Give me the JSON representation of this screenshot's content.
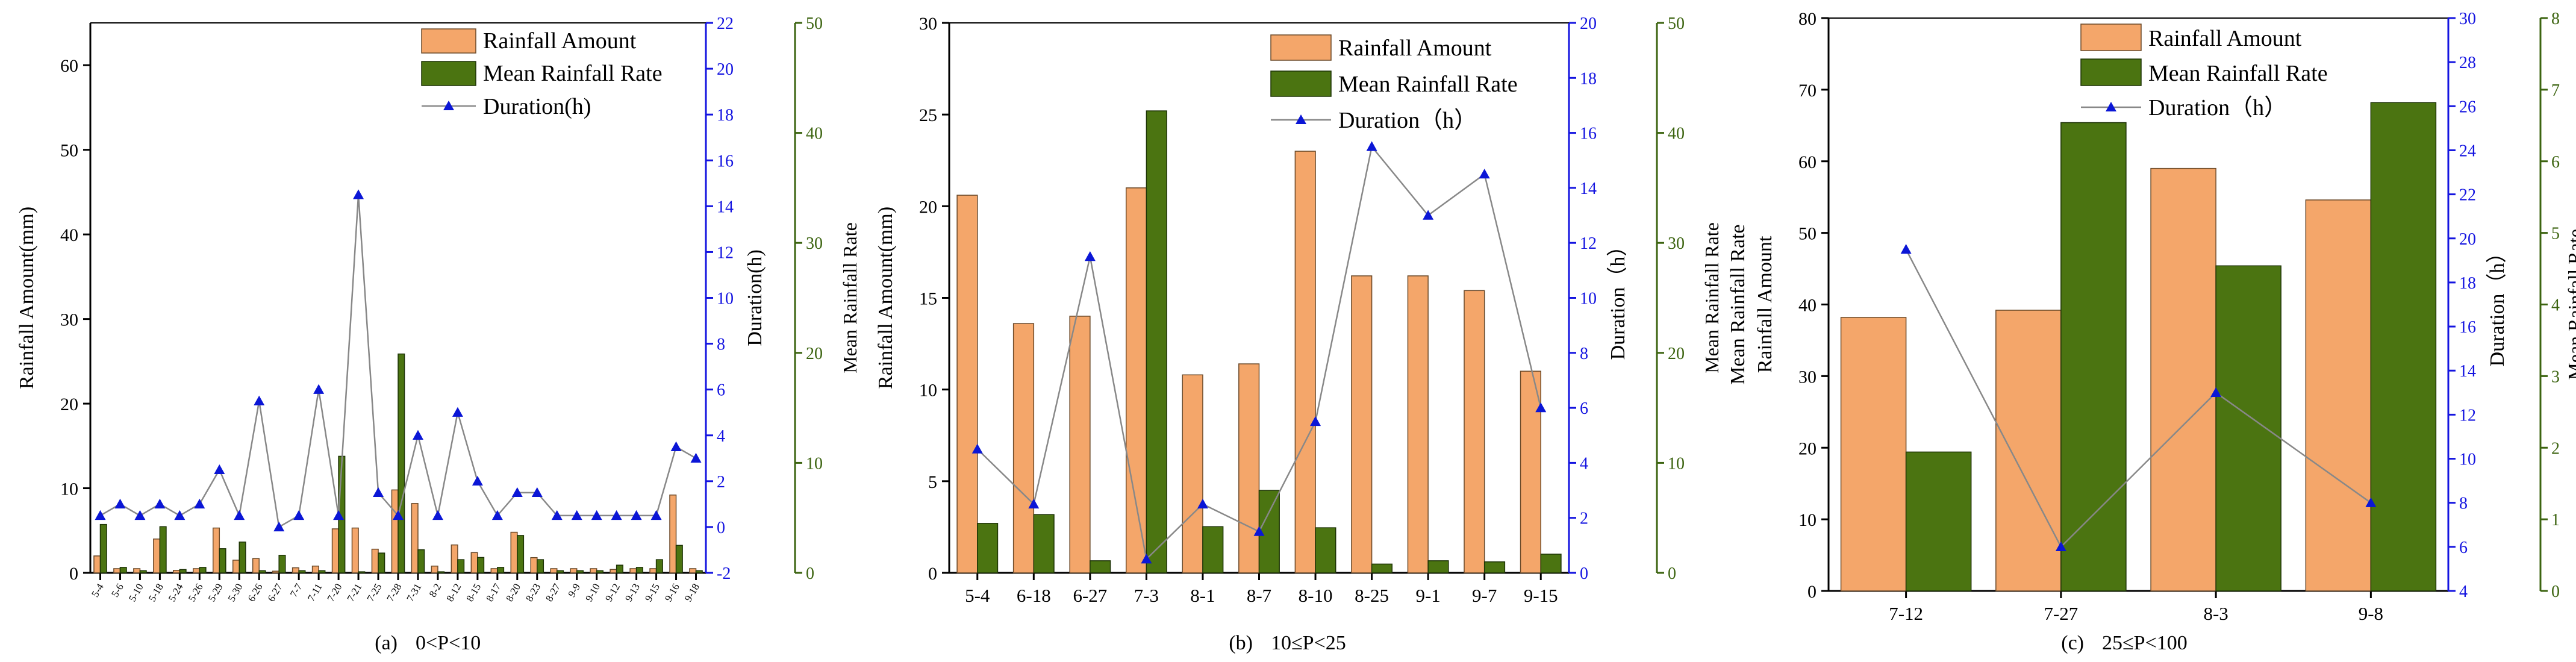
{
  "colors": {
    "rain": "#f4a66a",
    "rate": "#4b7411",
    "duration": "#0b16d6",
    "line": "#888888",
    "axis_left": "#000000",
    "axis_right1": "#1414e0",
    "axis_right2": "#3c6410"
  },
  "legend": {
    "rain": "Rainfall Amount",
    "rate": "Mean Rainfall Rate",
    "duration_a": "Duration(h)",
    "duration_bc": "Duration（h）"
  },
  "chart_data": [
    {
      "type": "bar",
      "panel": "a",
      "caption_label": "(a)",
      "caption_range": "0<P<10",
      "ylabel_left": "Rainfall Amount(mm)",
      "ylabel_right1": "Duration(h)",
      "ylabel_right2": "Mean Rainfall Rate",
      "ylim_left": [
        0,
        65
      ],
      "ylim_right1": [
        -2,
        22
      ],
      "ylim_right2": [
        0,
        50
      ],
      "ticks_left": [
        0,
        10,
        20,
        30,
        40,
        50,
        60
      ],
      "ticks_right1": [
        -2,
        0,
        2,
        4,
        6,
        8,
        10,
        12,
        14,
        16,
        18,
        20,
        22
      ],
      "ticks_right2": [
        0,
        10,
        20,
        30,
        40,
        50
      ],
      "categories": [
        "5-4",
        "5-6",
        "5-10",
        "5-18",
        "5-24",
        "5-26",
        "5-29",
        "5-30",
        "6-26",
        "6-27",
        "7-7",
        "7-11",
        "7-20",
        "7-21",
        "7-25",
        "7-28",
        "7-31",
        "8-2",
        "8-12",
        "8-15",
        "8-17",
        "8-20",
        "8-23",
        "8-27",
        "9-9",
        "9-10",
        "9-12",
        "9-13",
        "9-15",
        "9-16",
        "9-18"
      ],
      "series": [
        {
          "name": "Rainfall Amount",
          "axis": "left",
          "values": [
            2.0,
            0.5,
            0.5,
            4.0,
            0.3,
            0.5,
            5.3,
            1.5,
            1.7,
            0.2,
            0.6,
            0.8,
            5.2,
            5.3,
            2.8,
            9.8,
            8.2,
            0.8,
            3.3,
            2.4,
            0.5,
            4.8,
            1.8,
            0.5,
            0.5,
            0.5,
            0.4,
            0.5,
            0.5,
            9.2,
            0.5
          ]
        },
        {
          "name": "Mean Rainfall Rate",
          "axis": "right2",
          "values": [
            4.4,
            0.5,
            0.2,
            4.2,
            0.3,
            0.5,
            2.2,
            2.8,
            0.2,
            1.6,
            0.2,
            0.2,
            10.6,
            0.1,
            1.8,
            19.9,
            2.1,
            0.1,
            1.2,
            1.4,
            0.5,
            3.4,
            1.2,
            0.2,
            0.2,
            0.2,
            0.7,
            0.5,
            1.2,
            2.5,
            0.2
          ]
        },
        {
          "name": "Duration(h)",
          "axis": "right1",
          "values": [
            0.5,
            1.0,
            0.5,
            1.0,
            0.5,
            1.0,
            2.5,
            0.5,
            5.5,
            0.0,
            0.5,
            6.0,
            0.5,
            14.5,
            1.5,
            0.5,
            4.0,
            0.5,
            5.0,
            2.0,
            0.5,
            1.5,
            1.5,
            0.5,
            0.5,
            0.5,
            0.5,
            0.5,
            0.5,
            3.5,
            3.0
          ]
        }
      ]
    },
    {
      "type": "bar",
      "panel": "b",
      "caption_label": "(b)",
      "caption_range": "10≤P<25",
      "ylabel_left": "Rainfall Amount(mm)",
      "ylabel_right1": "Duration（h）",
      "ylabel_right2": "Mean Rainfall Rate",
      "ylim_left": [
        0,
        30
      ],
      "ylim_right1": [
        0,
        20
      ],
      "ylim_right2": [
        0,
        50
      ],
      "ticks_left": [
        0,
        5,
        10,
        15,
        20,
        25,
        30
      ],
      "ticks_right1": [
        0,
        2,
        4,
        6,
        8,
        10,
        12,
        14,
        16,
        18,
        20
      ],
      "ticks_right2": [
        0,
        10,
        20,
        30,
        40,
        50
      ],
      "categories": [
        "5-4",
        "6-18",
        "6-27",
        "7-3",
        "8-1",
        "8-7",
        "8-10",
        "8-25",
        "9-1",
        "9-7",
        "9-15"
      ],
      "series": [
        {
          "name": "Rainfall Amount",
          "axis": "left",
          "values": [
            20.6,
            13.6,
            14.0,
            21.0,
            10.8,
            11.4,
            23.0,
            16.2,
            16.2,
            15.4,
            11.0
          ]
        },
        {
          "name": "Mean Rainfall Rate",
          "axis": "right2",
          "values": [
            4.5,
            5.3,
            1.1,
            42.0,
            4.2,
            7.5,
            4.1,
            0.8,
            1.1,
            1.0,
            1.7
          ]
        },
        {
          "name": "Duration（h）",
          "axis": "right1",
          "values": [
            4.5,
            2.5,
            11.5,
            0.5,
            2.5,
            1.5,
            5.5,
            15.5,
            13.0,
            14.5,
            6.0
          ]
        }
      ]
    },
    {
      "type": "bar",
      "panel": "c",
      "caption_label": "(c)",
      "caption_range": "25≤P<100",
      "ylabel_left_top": "Mean Rainfall Rate",
      "ylabel_left": "Rainfall Amount",
      "ylabel_right1": "Duration（h）",
      "ylabel_right2": "Mean Rainfall Rate",
      "ylim_left": [
        0,
        80
      ],
      "ylim_right1": [
        4,
        30
      ],
      "ylim_right2": [
        0,
        8
      ],
      "ticks_left": [
        0,
        10,
        20,
        30,
        40,
        50,
        60,
        70,
        80
      ],
      "ticks_right1": [
        4,
        6,
        8,
        10,
        12,
        14,
        16,
        18,
        20,
        22,
        24,
        26,
        28,
        30
      ],
      "ticks_right2": [
        0,
        1,
        2,
        3,
        4,
        5,
        6,
        7,
        8
      ],
      "categories": [
        "7-12",
        "7-27",
        "8-3",
        "9-8"
      ],
      "series": [
        {
          "name": "Rainfall Amount",
          "axis": "left",
          "values": [
            38.2,
            39.2,
            59.0,
            54.6
          ]
        },
        {
          "name": "Mean Rainfall Rate",
          "axis": "right2",
          "values": [
            1.94,
            6.54,
            4.54,
            6.82
          ]
        },
        {
          "name": "Duration（h）",
          "axis": "right1",
          "values": [
            19.5,
            6.0,
            13.0,
            8.0
          ]
        }
      ]
    }
  ]
}
